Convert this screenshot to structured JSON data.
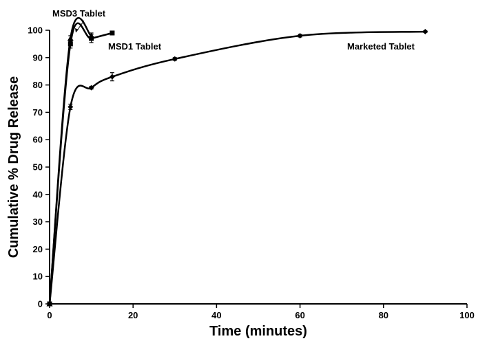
{
  "chart_data": {
    "type": "line",
    "title": "",
    "xlabel": "Time (minutes)",
    "ylabel": "Cumulative % Drug Release",
    "xlim": [
      0,
      100
    ],
    "ylim": [
      0,
      100
    ],
    "xticks": [
      0,
      20,
      40,
      60,
      80,
      100
    ],
    "yticks": [
      0,
      10,
      20,
      30,
      40,
      50,
      60,
      70,
      80,
      90,
      100
    ],
    "grid": false,
    "series": [
      {
        "name": "MSD3 Tablet",
        "marker": "triangle",
        "x": [
          0,
          5,
          10
        ],
        "y": [
          0,
          97,
          98
        ],
        "err": [
          0,
          1,
          1
        ]
      },
      {
        "name": "MSD1 Tablet",
        "marker": "square",
        "x": [
          0,
          5,
          10,
          15
        ],
        "y": [
          0,
          95,
          97,
          99
        ],
        "err": [
          0,
          1.5,
          1.5,
          0.5
        ]
      },
      {
        "name": "Marketed Tablet",
        "marker": "diamond",
        "x": [
          0,
          5,
          10,
          15,
          30,
          60,
          90
        ],
        "y": [
          0,
          72,
          79,
          83,
          89.5,
          98,
          99.5
        ],
        "err": [
          0,
          1,
          0.5,
          1.5,
          0.5,
          0.5,
          0.3
        ]
      }
    ]
  }
}
